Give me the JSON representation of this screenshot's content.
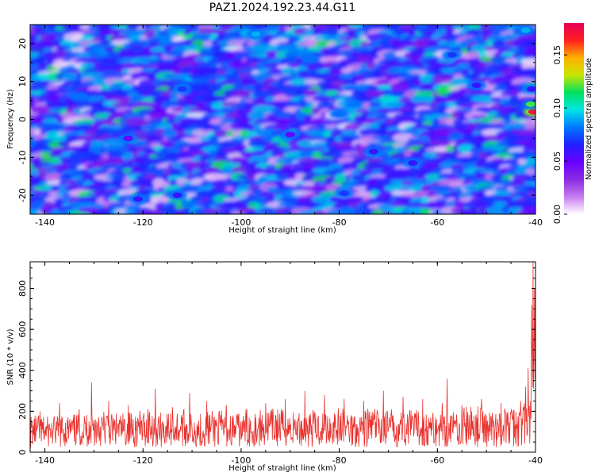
{
  "figure_title": "PAZ1.2024.192.23.44.G11",
  "colors": {
    "snr_line": "#e8322e",
    "colormap": [
      "#ffffff",
      "#c77bf0",
      "#8a2be2",
      "#6a00ff",
      "#2020ff",
      "#0078ff",
      "#00e5e5",
      "#00e060",
      "#c8e600",
      "#ffb000",
      "#ff2020",
      "#e6005a"
    ]
  },
  "chart_data": [
    {
      "type": "heatmap",
      "title": "PAZ1.2024.192.23.44.G11",
      "xlabel": "Height of straight line (km)",
      "ylabel": "Frequency (Hz)",
      "xlim": [
        -143,
        -40
      ],
      "ylim": [
        -25,
        25
      ],
      "xticks": [
        -140,
        -120,
        -100,
        -80,
        -60,
        -40
      ],
      "yticks": [
        -20,
        -10,
        0,
        10,
        20
      ],
      "colorbar": {
        "label": "Normalized spectral amplitude",
        "range": [
          0,
          0.18
        ],
        "ticks": [
          "0.00",
          "0.05",
          "0.10",
          "0.15"
        ]
      },
      "hotspots": [
        {
          "x": -40.5,
          "y": 2,
          "value": 0.17
        },
        {
          "x": -41,
          "y": 4,
          "value": 0.12
        },
        {
          "x": -42,
          "y": 23.5,
          "value": 0.09
        },
        {
          "x": -97,
          "y": 22.5,
          "value": 0.09
        },
        {
          "x": -133,
          "y": 6,
          "value": 0.08
        },
        {
          "x": -80,
          "y": 1.5,
          "value": 0.08
        },
        {
          "x": -86,
          "y": 16,
          "value": 0.08
        },
        {
          "x": -57,
          "y": 17,
          "value": 0.07
        },
        {
          "x": -112,
          "y": 8,
          "value": 0.07
        },
        {
          "x": -79,
          "y": -19.5,
          "value": 0.07
        },
        {
          "x": -73,
          "y": -8.5,
          "value": 0.06
        },
        {
          "x": -65,
          "y": -11.5,
          "value": 0.06
        },
        {
          "x": -121,
          "y": -21,
          "value": 0.06
        },
        {
          "x": -113,
          "y": -20,
          "value": 0.06
        },
        {
          "x": -52,
          "y": 9,
          "value": 0.06
        },
        {
          "x": -40.8,
          "y": 8,
          "value": 0.06
        },
        {
          "x": -123,
          "y": -5,
          "value": 0.05
        },
        {
          "x": -90,
          "y": -4,
          "value": 0.05
        }
      ]
    },
    {
      "type": "line",
      "xlabel": "Height of straight line (km)",
      "ylabel": "SNR (10 * v/v)",
      "xlim": [
        -143,
        -40
      ],
      "ylim": [
        0,
        930
      ],
      "xticks": [
        -140,
        -120,
        -100,
        -80,
        -60,
        -40
      ],
      "yticks": [
        0,
        200,
        400,
        600,
        800
      ],
      "series": [
        {
          "x": [
            -143,
            -141,
            -139,
            -137,
            -135,
            -133,
            -131,
            -130.5,
            -129,
            -127,
            -125,
            -123,
            -121,
            -119,
            -117.5,
            -116,
            -114,
            -112,
            -110.5,
            -109,
            -107,
            -105,
            -103,
            -101,
            -99,
            -97,
            -95,
            -93,
            -91,
            -89,
            -87,
            -85,
            -83,
            -81,
            -79,
            -77,
            -75,
            -73,
            -71,
            -69,
            -67,
            -65,
            -63,
            -61,
            -59,
            -58,
            -57,
            -55,
            -53,
            -51,
            -49,
            -47,
            -45,
            -43,
            -42,
            -41.5,
            -41,
            -40.8,
            -40.5,
            -40.2,
            -40
          ],
          "y": [
            120,
            200,
            110,
            240,
            130,
            210,
            150,
            340,
            170,
            250,
            140,
            230,
            160,
            210,
            310,
            150,
            220,
            170,
            290,
            140,
            250,
            160,
            230,
            140,
            210,
            170,
            240,
            180,
            260,
            160,
            300,
            170,
            280,
            190,
            260,
            170,
            250,
            190,
            300,
            180,
            270,
            170,
            260,
            150,
            240,
            360,
            180,
            230,
            200,
            260,
            170,
            240,
            190,
            250,
            320,
            410,
            250,
            720,
            930,
            800,
            680
          ]
        }
      ]
    }
  ]
}
